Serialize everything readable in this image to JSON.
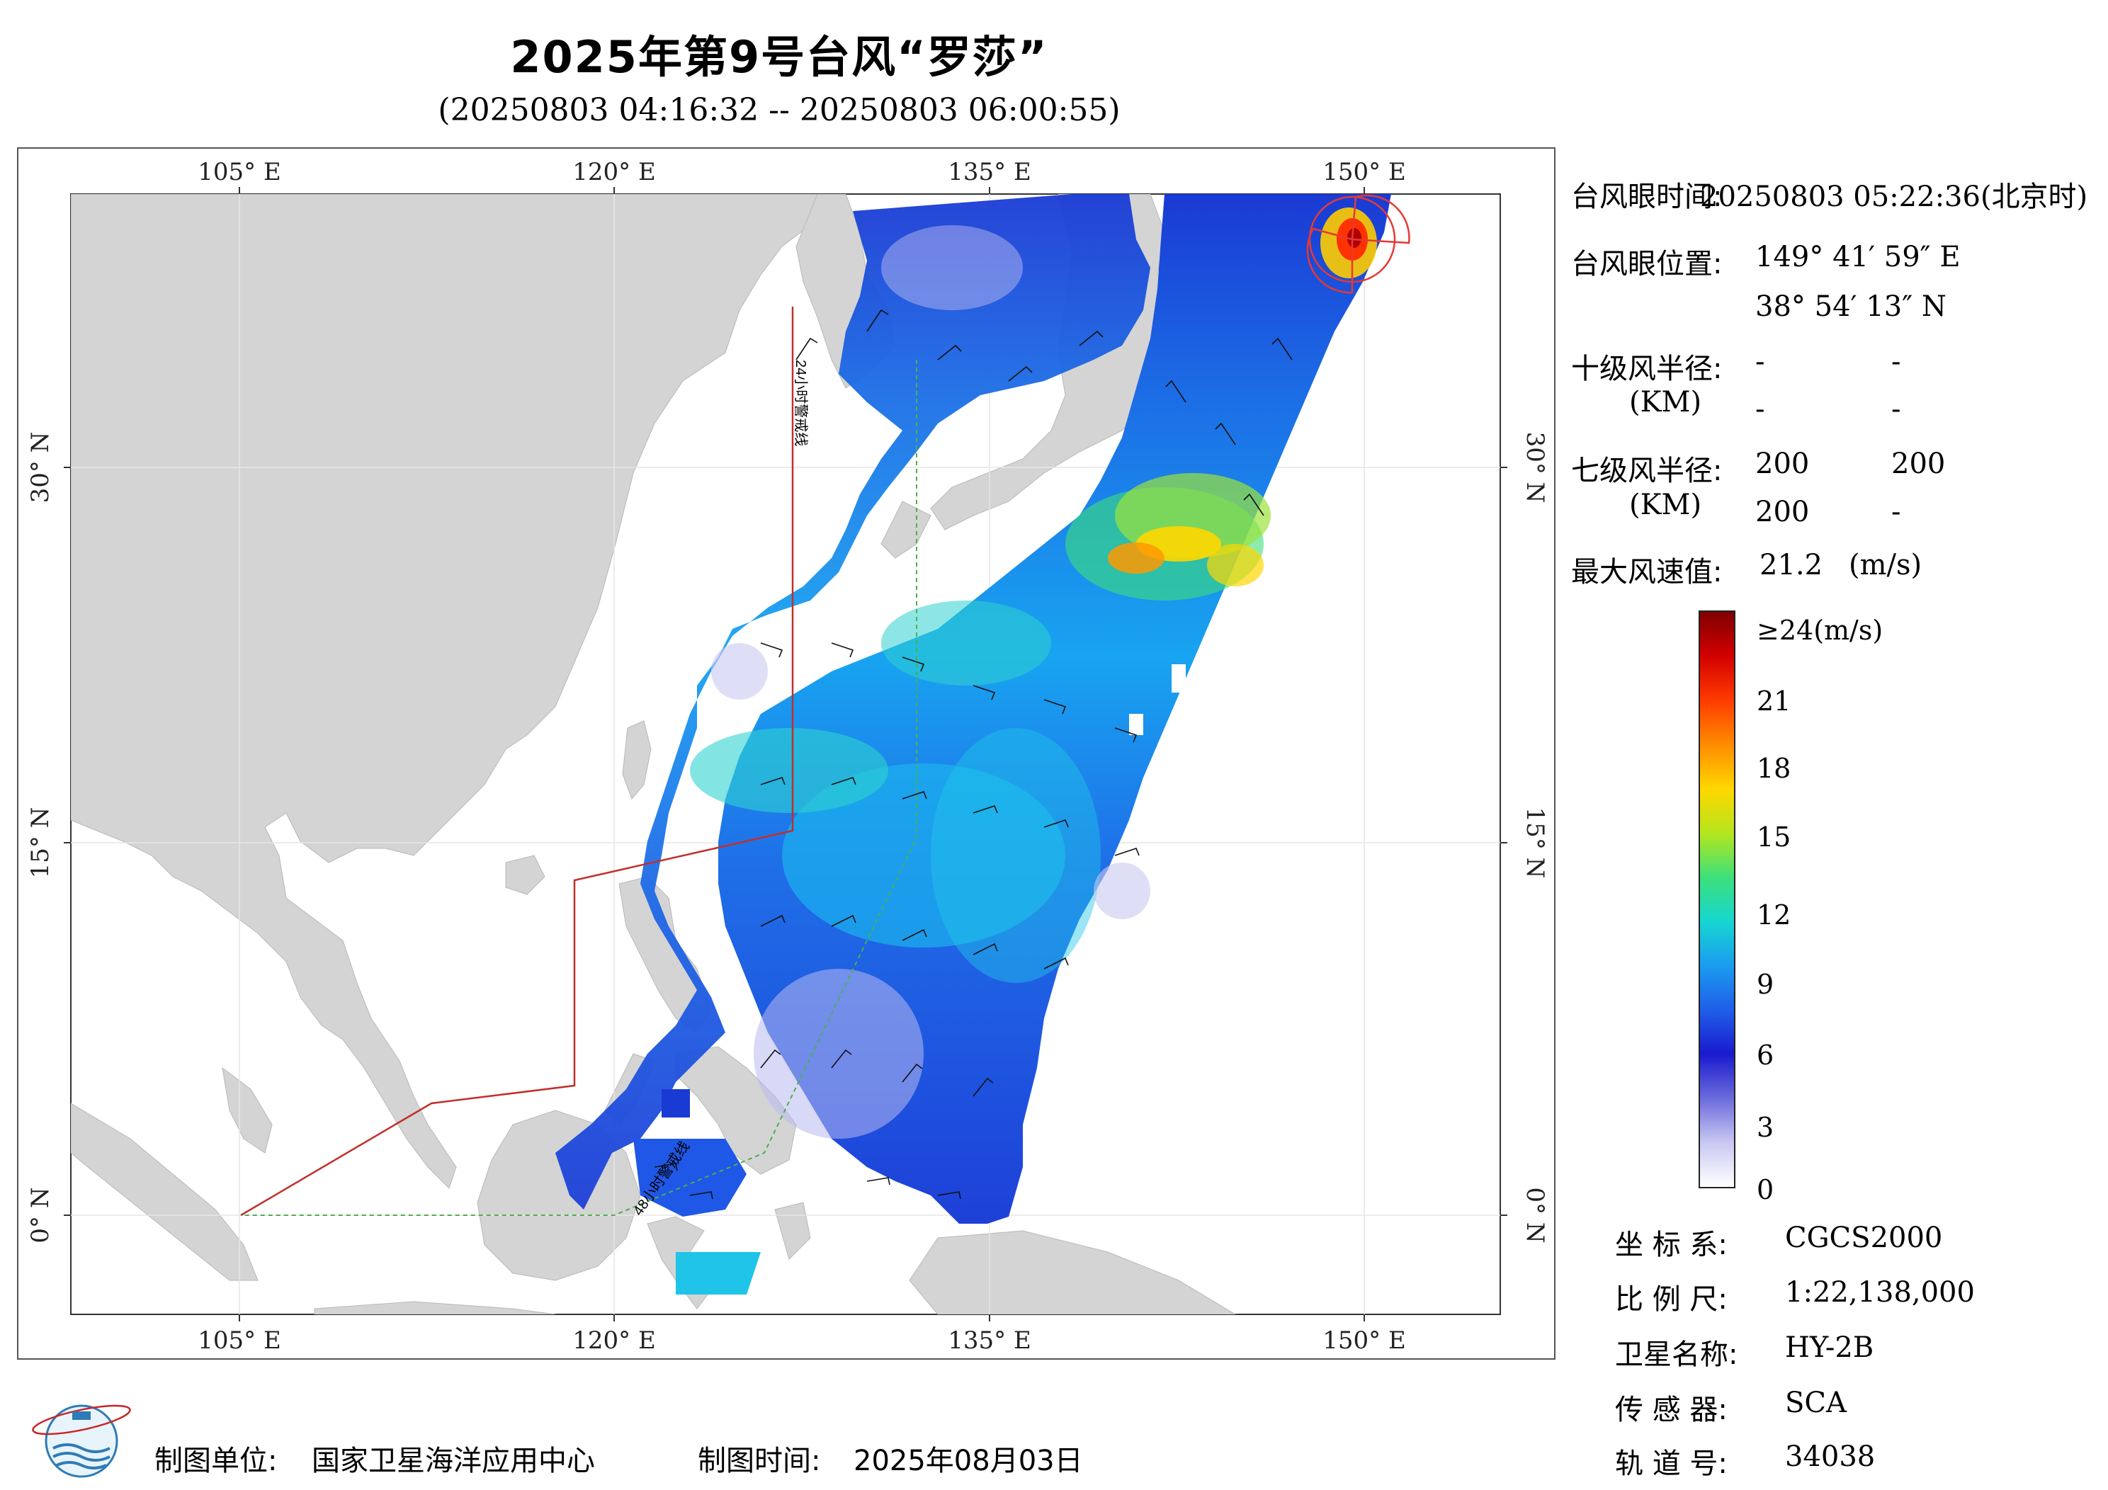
{
  "header": {
    "title": "2025年第9号台风“罗莎”",
    "subtitle": "(20250803 04:16:32 -- 20250803 06:00:55)"
  },
  "map": {
    "lon_labels": [
      "105° E",
      "120° E",
      "135° E",
      "150° E"
    ],
    "lat_labels": [
      "30° N",
      "15° N",
      "0° N"
    ],
    "line_24h_label": "24小时警戒线",
    "line_48h_label": "48小时警戒线",
    "colors": {
      "land": "#d4d4d4",
      "ocean": "#ffffff",
      "warning_24h": "#c0302c",
      "warning_48h": "#4caf50",
      "eye_marker": "#e53935"
    }
  },
  "info": {
    "eye_time_label": "台风眼时间:",
    "eye_time_value": "20250803 05:22:36(北京时)",
    "eye_pos_label": "台风眼位置:",
    "eye_lon": "149° 41′ 59″ E",
    "eye_lat": "38° 54′ 13″ N",
    "r10_label": "十级风半径:",
    "r10_unit": "(KM)",
    "r10_values": [
      "-",
      "-",
      "-",
      "-"
    ],
    "r7_label": "七级风半径:",
    "r7_unit": "(KM)",
    "r7_values": [
      "200",
      "200",
      "200",
      "-"
    ],
    "max_label": "最大风速值:",
    "max_value": "21.2",
    "max_unit": "(m/s)"
  },
  "colorbar": {
    "labels": [
      "≥24(m/s)",
      "21",
      "18",
      "15",
      "12",
      "9",
      "6",
      "3",
      "0"
    ],
    "stops": [
      "#7f0000",
      "#d40000",
      "#ff3b00",
      "#ff8c00",
      "#ffd700",
      "#b5e61d",
      "#3ce07a",
      "#16d6d0",
      "#1b9cf0",
      "#1f5fe8",
      "#1a1acf",
      "#6b6bdc",
      "#c8c8f2",
      "#ffffff"
    ]
  },
  "metadata": {
    "coord_label": "坐 标 系:",
    "coord_value": "CGCS2000",
    "scale_label": "比 例 尺:",
    "scale_value": "1:22,138,000",
    "satellite_label": "卫星名称:",
    "satellite_value": "HY-2B",
    "sensor_label": "传 感 器:",
    "sensor_value": "SCA",
    "orbit_label": "轨 道 号:",
    "orbit_value": "34038"
  },
  "footer": {
    "org_label": "制图单位:",
    "org_value": "国家卫星海洋应用中心",
    "date_label": "制图时间:",
    "date_value": "2025年08月03日"
  }
}
